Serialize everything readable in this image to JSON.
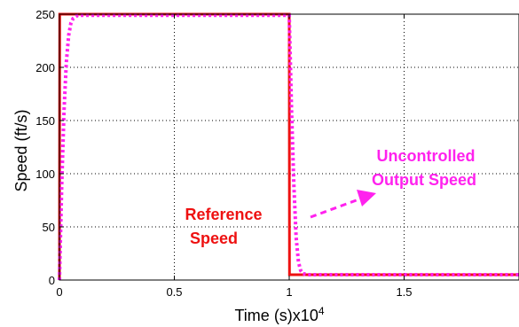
{
  "chart_data": {
    "type": "line",
    "xlabel": "Time (s)x10",
    "xlabel_exponent": "4",
    "ylabel": "Speed (ft/s)",
    "xlim": [
      0,
      2
    ],
    "ylim": [
      0,
      250
    ],
    "x_ticks": [
      "0",
      "0.5",
      "1",
      "1.5"
    ],
    "y_ticks": [
      "0",
      "50",
      "100",
      "150",
      "200",
      "250"
    ],
    "grid": true,
    "series": [
      {
        "name": "Reference Speed",
        "style": "solid",
        "color": "#ee1111",
        "x": [
          0,
          0.001,
          1.0,
          1.001,
          2.0
        ],
        "y": [
          0,
          250,
          250,
          5,
          5
        ]
      },
      {
        "name": "Uncontrolled Output Speed",
        "style": "dotted",
        "color": "#ff22ee",
        "x": [
          0,
          0.01,
          0.02,
          0.03,
          0.04,
          0.05,
          0.06,
          0.08,
          0.1,
          1.0,
          1.01,
          1.02,
          1.03,
          1.04,
          1.05,
          1.06,
          1.08,
          1.1,
          2.0
        ],
        "y": [
          0,
          90,
          160,
          205,
          230,
          242,
          246,
          249,
          249,
          249,
          160,
          90,
          40,
          17,
          9,
          6,
          5,
          5,
          5
        ]
      }
    ],
    "annotations": [
      {
        "line1": "Reference",
        "line2": "Speed",
        "color": "#ee1111"
      },
      {
        "line1": "Uncontrolled",
        "line2": "Output Speed",
        "color": "#ff22ee"
      }
    ]
  }
}
